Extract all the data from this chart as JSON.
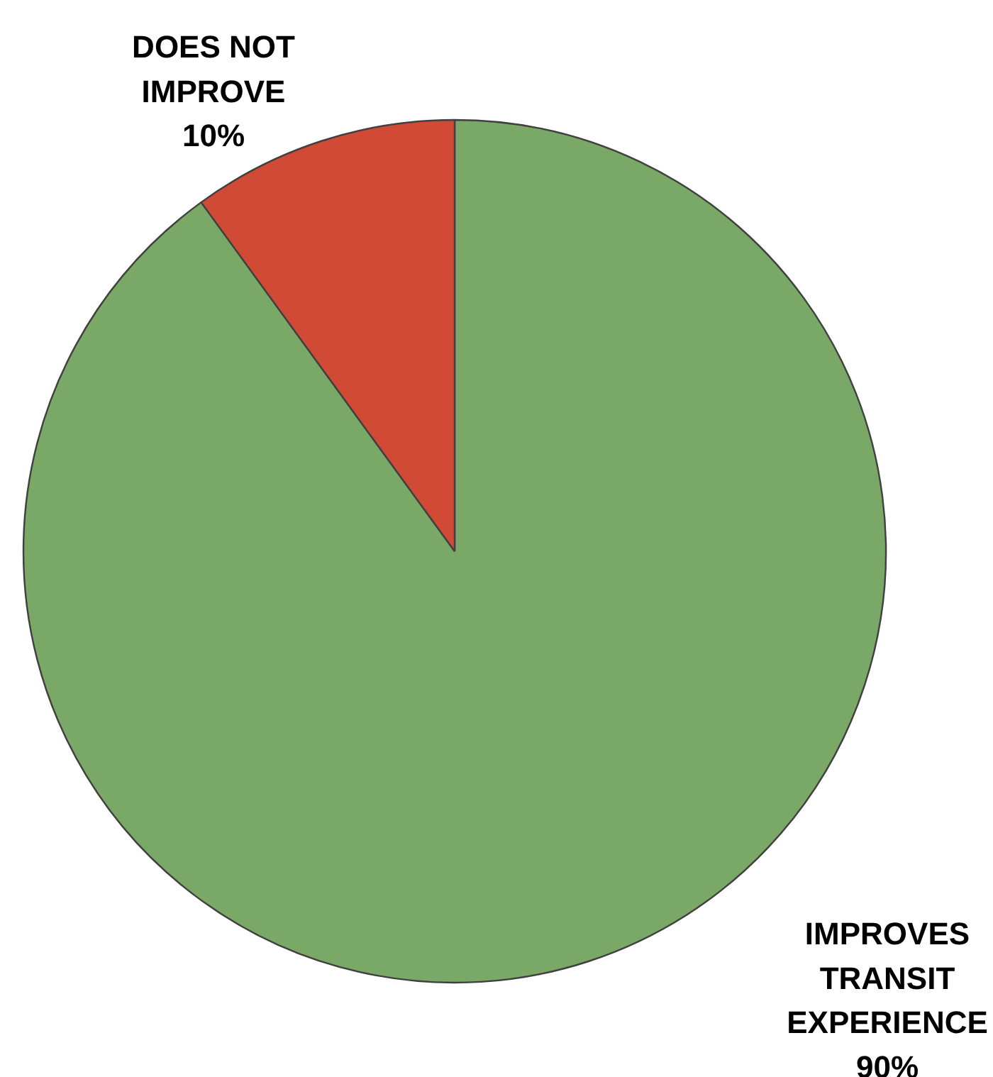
{
  "chart_data": {
    "type": "pie",
    "categories": [
      "IMPROVES TRANSIT EXPERIENCE",
      "DOES NOT IMPROVE"
    ],
    "values": [
      90,
      10
    ],
    "colors": [
      "#7aa866",
      "#d04a35"
    ],
    "value_labels": [
      "90%",
      "10%"
    ]
  }
}
